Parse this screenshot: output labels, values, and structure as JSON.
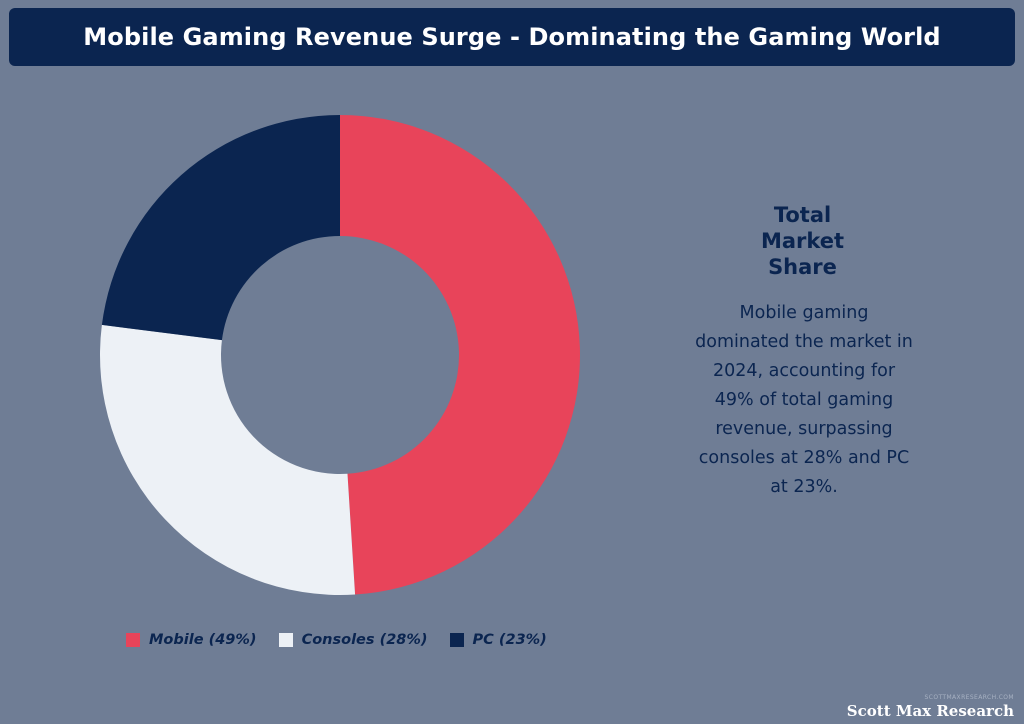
{
  "header": {
    "title": "Mobile Gaming Revenue Surge - Dominating the Gaming World"
  },
  "sidebar_text": {
    "heading_lines": [
      "Total",
      "Market",
      "Share"
    ],
    "body_lines": [
      "Mobile gaming",
      "dominated the market in",
      "2024, accounting for",
      "49% of total gaming",
      "revenue, surpassing",
      "consoles at 28% and PC",
      "at 23%."
    ]
  },
  "chart_data": {
    "type": "pie",
    "variant": "donut",
    "title": "Mobile Gaming Revenue Surge - Dominating the Gaming World",
    "unit": "%",
    "start_angle": "12 o'clock",
    "direction": "clockwise",
    "slices": [
      {
        "label": "Mobile",
        "value": 49,
        "color": "#e8445a"
      },
      {
        "label": "Consoles",
        "value": 28,
        "color": "#edf1f6"
      },
      {
        "label": "PC",
        "value": 23,
        "color": "#0b2550"
      }
    ],
    "legend_position": "bottom-left",
    "legend_labels": [
      "Mobile (49%)",
      "Consoles (28%)",
      "PC (23%)"
    ]
  },
  "watermark": {
    "caption": "scottmaxresearch.com",
    "brand": "Scott Max Research"
  },
  "colors": {
    "background": "#6f7d95",
    "title_bar": "#0b2550",
    "title_text": "#ffffff",
    "accent_text": "#0b2550"
  }
}
